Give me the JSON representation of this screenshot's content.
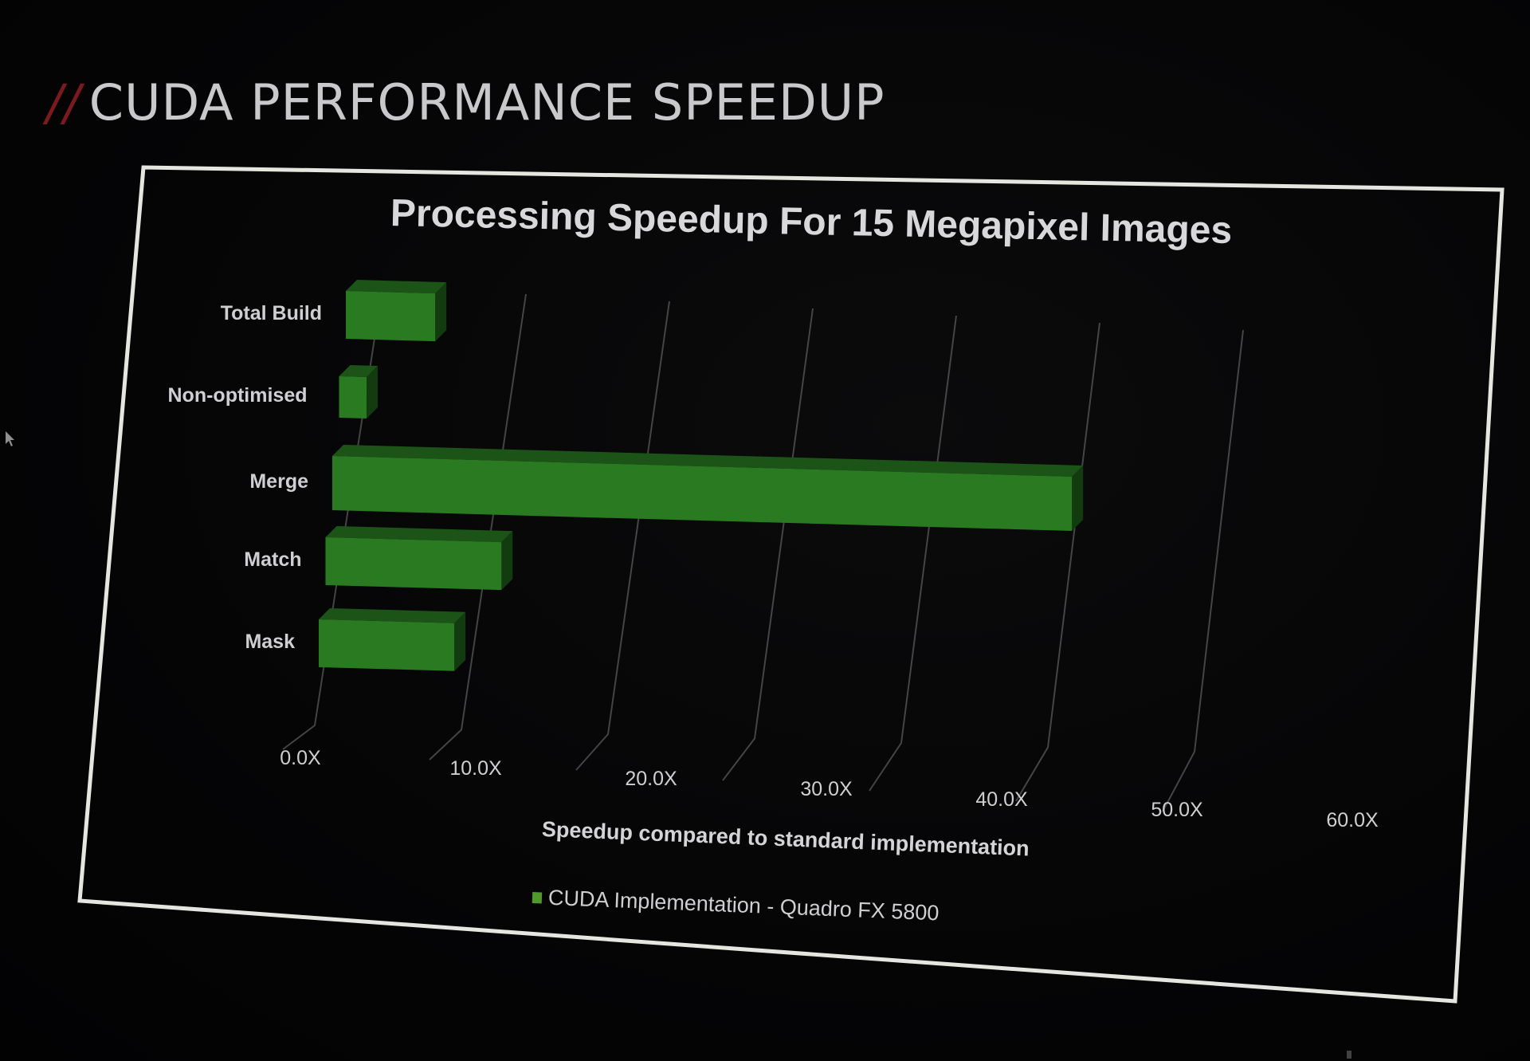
{
  "slide": {
    "title_prefix": "//",
    "title": "CUDA PERFORMANCE SPEEDUP"
  },
  "colors": {
    "background": "#050506",
    "bar_front": "#2a7a22",
    "bar_top": "#1c5418",
    "bar_side": "#123c10",
    "accent_red": "#7a1a1e",
    "frame": "#e6e6e0",
    "gridline": "#5a5a5e"
  },
  "chart_data": {
    "type": "bar",
    "orientation": "horizontal",
    "style": "3d",
    "title": "Processing Speedup For 15 Megapixel Images",
    "xlabel": "Speedup compared to standard implementation",
    "ylabel": "",
    "categories": [
      "Total Build",
      "Non-optimised",
      "Merge",
      "Match",
      "Mask"
    ],
    "series": [
      {
        "name": "CUDA Implementation - Quadro FX 5800",
        "values": [
          6.2,
          1.9,
          51.0,
          12.1,
          9.3
        ]
      }
    ],
    "xlim": [
      0,
      60
    ],
    "xticks": [
      "0.0X",
      "10.0X",
      "20.0X",
      "30.0X",
      "40.0X",
      "50.0X",
      "60.0X"
    ],
    "grid": true,
    "legend_position": "bottom"
  }
}
